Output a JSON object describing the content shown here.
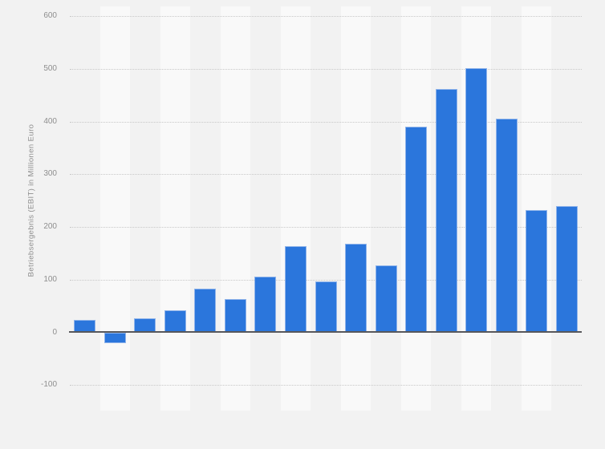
{
  "chart_data": {
    "type": "bar",
    "title": "",
    "xlabel": "",
    "ylabel": "Betriebsergebnis (EBIT) in Millionen Euro",
    "categories": [
      "",
      "",
      "",
      "",
      "",
      "",
      "",
      "",
      "",
      "",
      "",
      "",
      "",
      "",
      "",
      "",
      ""
    ],
    "values": [
      23,
      -21,
      26,
      42,
      83,
      63,
      105,
      163,
      96,
      168,
      127,
      390,
      462,
      502,
      406,
      232,
      239
    ],
    "yticks": [
      600,
      500,
      400,
      300,
      200,
      100,
      0,
      -100
    ],
    "ylim": [
      -150,
      615
    ],
    "grid": "horizontal-dotted",
    "legend_position": "none",
    "colors": {
      "bar": "#2b76dc",
      "bar_border": "#90b4ea",
      "background": "#f2f2f2",
      "stripe_light": "#f9f9f9",
      "gridline": "#c8c8c8",
      "zero_line": "#57585c",
      "tick_label": "#8e8e8e",
      "axis_title": "#8e8e8e"
    }
  }
}
